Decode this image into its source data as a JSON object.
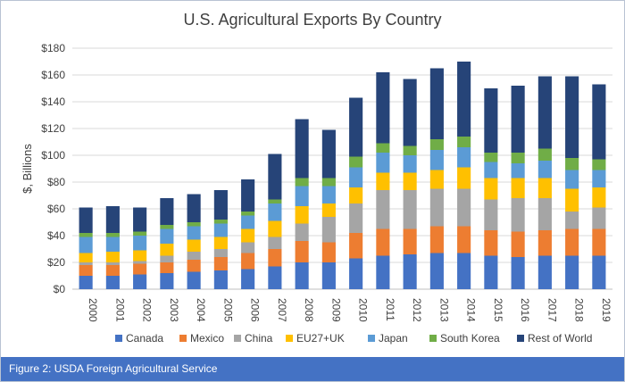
{
  "chart_data": {
    "type": "bar",
    "stacked": true,
    "title": "U.S. Agricultural Exports By Country",
    "ylabel": "$, Billions",
    "xlabel": "",
    "ylim": [
      0,
      180
    ],
    "yticks": [
      "$0",
      "$20",
      "$40",
      "$60",
      "$80",
      "$100",
      "$120",
      "$140",
      "$160",
      "$180"
    ],
    "ytick_values": [
      0,
      20,
      40,
      60,
      80,
      100,
      120,
      140,
      160,
      180
    ],
    "grid": true,
    "legend_position": "bottom",
    "categories": [
      "2000",
      "2001",
      "2002",
      "2003",
      "2004",
      "2005",
      "2006",
      "2007",
      "2008",
      "2009",
      "2010",
      "2011",
      "2012",
      "2013",
      "2014",
      "2015",
      "2016",
      "2017",
      "2018",
      "2019"
    ],
    "series": [
      {
        "name": "Canada",
        "color": "#4472c4",
        "values": [
          10,
          10,
          11,
          12,
          13,
          14,
          15,
          17,
          20,
          20,
          23,
          25,
          26,
          27,
          27,
          25,
          24,
          25,
          25,
          25
        ]
      },
      {
        "name": "Mexico",
        "color": "#ed7d31",
        "values": [
          8,
          8,
          8,
          8,
          9,
          10,
          12,
          13,
          16,
          15,
          19,
          20,
          19,
          20,
          20,
          19,
          19,
          19,
          20,
          20
        ]
      },
      {
        "name": "China",
        "color": "#a5a5a5",
        "values": [
          2,
          2,
          2,
          5,
          6,
          6,
          8,
          9,
          13,
          19,
          22,
          29,
          29,
          28,
          28,
          23,
          25,
          24,
          13,
          16
        ]
      },
      {
        "name": "EU27+UK",
        "color": "#ffc000",
        "values": [
          7,
          8,
          8,
          9,
          9,
          9,
          10,
          12,
          13,
          10,
          12,
          13,
          13,
          14,
          16,
          16,
          15,
          15,
          17,
          15
        ]
      },
      {
        "name": "Japan",
        "color": "#5b9bd5",
        "values": [
          12,
          11,
          11,
          11,
          10,
          10,
          10,
          13,
          15,
          13,
          15,
          15,
          13,
          15,
          15,
          12,
          11,
          13,
          14,
          13
        ]
      },
      {
        "name": "South Korea",
        "color": "#70ad47",
        "values": [
          3,
          3,
          3,
          3,
          3,
          3,
          3,
          3,
          6,
          6,
          8,
          7,
          7,
          8,
          8,
          7,
          8,
          9,
          9,
          8
        ]
      },
      {
        "name": "Rest of World",
        "color": "#264478",
        "values": [
          19,
          20,
          18,
          20,
          21,
          22,
          24,
          34,
          44,
          36,
          44,
          53,
          50,
          53,
          56,
          48,
          50,
          54,
          61,
          56
        ]
      }
    ]
  },
  "caption": "Figure 2: USDA Foreign Agricultural Service"
}
